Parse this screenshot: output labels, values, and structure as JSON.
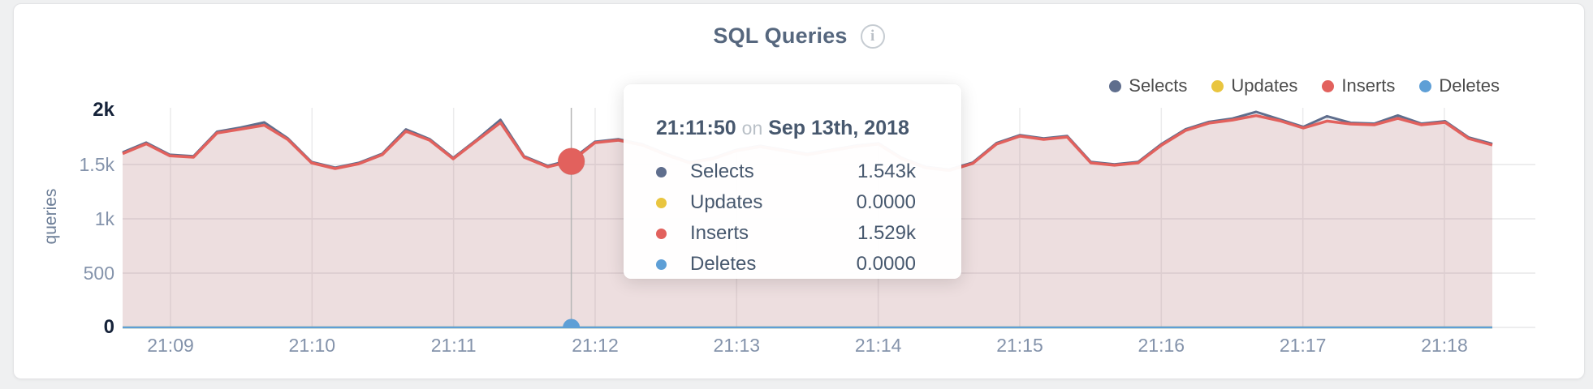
{
  "card": {
    "title": "SQL Queries",
    "info_icon": "i"
  },
  "legend": {
    "items": [
      {
        "label": "Selects",
        "color": "#5f6e8d"
      },
      {
        "label": "Updates",
        "color": "#e9c53f"
      },
      {
        "label": "Inserts",
        "color": "#e2615d"
      },
      {
        "label": "Deletes",
        "color": "#5e9fd6"
      }
    ]
  },
  "tooltip": {
    "time": "21:11:50",
    "conjunction": "on",
    "date": "Sep 13th, 2018",
    "rows": [
      {
        "label": "Selects",
        "value": "1.543k",
        "color": "#5f6e8d"
      },
      {
        "label": "Updates",
        "value": "0.0000",
        "color": "#e9c53f"
      },
      {
        "label": "Inserts",
        "value": "1.529k",
        "color": "#e2615d"
      },
      {
        "label": "Deletes",
        "value": "0.0000",
        "color": "#5e9fd6"
      }
    ]
  },
  "chart_data": {
    "type": "area",
    "title": "SQL Queries",
    "ylabel": "queries",
    "ylim": [
      0,
      2000
    ],
    "grid": true,
    "legend_position": "top-right",
    "y_ticks": [
      {
        "label": "2k",
        "value": 2000,
        "strong": true
      },
      {
        "label": "1.5k",
        "value": 1500,
        "strong": false
      },
      {
        "label": "1k",
        "value": 1000,
        "strong": false
      },
      {
        "label": "500",
        "value": 500,
        "strong": false
      },
      {
        "label": "0",
        "value": 0,
        "strong": true
      }
    ],
    "x_ticks": [
      "21:09",
      "21:10",
      "21:11",
      "21:12",
      "21:13",
      "21:14",
      "21:15",
      "21:16",
      "21:17",
      "21:18"
    ],
    "x_start_time": "21:08:40",
    "x_end_time": "21:18:20",
    "sample_interval_seconds": 10,
    "series": [
      {
        "name": "Selects",
        "color": "#5f6e8d",
        "fill": "rgba(95,110,141,0.10)",
        "values": [
          1612,
          1702,
          1590,
          1576,
          1802,
          1840,
          1888,
          1740,
          1524,
          1472,
          1516,
          1600,
          1824,
          1734,
          1561,
          1730,
          1912,
          1576,
          1487,
          1543,
          1710,
          1733,
          1688,
          1599,
          1524,
          1561,
          1636,
          1673,
          1636,
          1599,
          1636,
          1673,
          1696,
          1561,
          1479,
          1454,
          1519,
          1697,
          1771,
          1741,
          1763,
          1524,
          1502,
          1524,
          1690,
          1824,
          1893,
          1924,
          1985,
          1916,
          1847,
          1945,
          1884,
          1877,
          1952,
          1877,
          1899,
          1749,
          1690
        ]
      },
      {
        "name": "Updates",
        "color": "#e9c53f",
        "constant": 0
      },
      {
        "name": "Inserts",
        "color": "#e2615d",
        "fill": "rgba(226,97,93,0.13)",
        "values": [
          1600,
          1690,
          1580,
          1567,
          1790,
          1825,
          1862,
          1730,
          1515,
          1463,
          1507,
          1590,
          1806,
          1724,
          1552,
          1720,
          1885,
          1567,
          1478,
          1529,
          1701,
          1724,
          1679,
          1590,
          1515,
          1552,
          1627,
          1664,
          1627,
          1590,
          1627,
          1664,
          1687,
          1552,
          1470,
          1445,
          1510,
          1687,
          1761,
          1731,
          1753,
          1515,
          1493,
          1515,
          1679,
          1813,
          1881,
          1910,
          1950,
          1903,
          1836,
          1900,
          1873,
          1866,
          1925,
          1866,
          1888,
          1739,
          1679
        ]
      },
      {
        "name": "Deletes",
        "color": "#5e9fd6",
        "constant": 0
      }
    ],
    "highlight": {
      "index": 19,
      "time": "21:11:50",
      "date": "Sep 13th, 2018",
      "selects": 1543,
      "updates": 0,
      "inserts": 1529,
      "deletes": 0
    }
  }
}
